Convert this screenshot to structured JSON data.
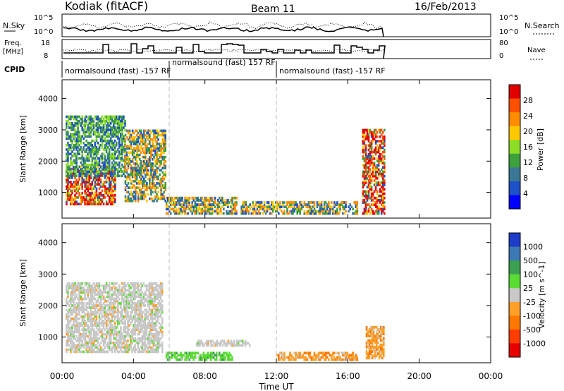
{
  "header": {
    "radar": "Kodiak (fitACF)",
    "beam": "Beam 11",
    "date": "16/Feb/2013"
  },
  "noise_panel": {
    "left_label": "N.Sky",
    "right_label": "N.Search",
    "left_ticks": [
      "10^5",
      "10^0"
    ],
    "right_ticks": [
      "10^5",
      "10^0"
    ]
  },
  "freq_panel": {
    "left_label_1": "Freq.",
    "left_label_2": "[MHz]",
    "right_label": "Nave",
    "left_ticks": [
      "18",
      "8"
    ],
    "right_ticks": [
      "80",
      "0"
    ]
  },
  "cpid": {
    "label": "CPID",
    "segments": [
      {
        "start_hour": 0.0,
        "end_hour": 6.0,
        "text": "normalsound (fast) -157 RF"
      },
      {
        "start_hour": 6.0,
        "end_hour": 12.0,
        "text": "normalsound (fast) 157 RF"
      },
      {
        "start_hour": 12.0,
        "end_hour": 18.0,
        "text": "normalsound (fast) -157 RF"
      }
    ]
  },
  "power_panel": {
    "ylabel": "Slant Range [km]",
    "colorbar_label": "Power [dB]",
    "colorbar_ticks": [
      "28",
      "24",
      "20",
      "16",
      "12",
      "8",
      "4"
    ],
    "colorbar_colors": [
      "#e00000",
      "#ff5000",
      "#ff8c00",
      "#ffc800",
      "#8cdc28",
      "#3ca03c",
      "#3c7896",
      "#1e50c8",
      "#0000ff"
    ]
  },
  "velocity_panel": {
    "ylabel": "Slant Range [km]",
    "colorbar_label": "Velocity [m s^-1]",
    "colorbar_ticks": [
      "1000",
      "500",
      "100",
      "25",
      "-25",
      "-100",
      "-500",
      "-1000"
    ],
    "colorbar_colors": [
      "#1e3cc8",
      "#3c78b4",
      "#3ca050",
      "#5adc32",
      "#c8c8c8",
      "#ffa028",
      "#ff7800",
      "#ff3c00",
      "#e60000"
    ]
  },
  "axes": {
    "x_ticks": [
      "00:00",
      "04:00",
      "08:00",
      "12:00",
      "16:00",
      "20:00",
      "00:00"
    ],
    "x_label": "Time UT",
    "y_ticks": [
      "1000",
      "2000",
      "3000",
      "4000"
    ]
  },
  "chart_data": {
    "type": "heatmap",
    "x_unit": "hours UT",
    "x_range": [
      0,
      24
    ],
    "y_range_km": [
      180,
      4600
    ],
    "data_end_hour": 18.0,
    "power_regions": [
      {
        "t0": 0.2,
        "t1": 3.0,
        "r0": 600,
        "r1": 1800,
        "level": "high"
      },
      {
        "t0": 0.2,
        "t1": 3.5,
        "r0": 1500,
        "r1": 3400,
        "level": "low"
      },
      {
        "t0": 3.5,
        "t1": 5.8,
        "r0": 700,
        "r1": 3000,
        "level": "medium"
      },
      {
        "t0": 5.8,
        "t1": 9.8,
        "r0": 300,
        "r1": 800,
        "level": "medium"
      },
      {
        "t0": 10.0,
        "t1": 16.5,
        "r0": 300,
        "r1": 700,
        "level": "medium"
      },
      {
        "t0": 16.8,
        "t1": 18.0,
        "r0": 300,
        "r1": 3000,
        "level": "high"
      }
    ],
    "velocity_regions": [
      {
        "t0": 0.2,
        "t1": 5.6,
        "r0": 500,
        "r1": 2700,
        "class": "near-zero"
      },
      {
        "t0": 5.8,
        "t1": 9.5,
        "r0": 250,
        "r1": 500,
        "class": "positive"
      },
      {
        "t0": 7.5,
        "t1": 10.5,
        "r0": 700,
        "r1": 900,
        "class": "near-zero"
      },
      {
        "t0": 12.0,
        "t1": 16.5,
        "r0": 250,
        "r1": 500,
        "class": "negative"
      },
      {
        "t0": 17.0,
        "t1": 18.0,
        "r0": 300,
        "r1": 1300,
        "class": "negative"
      }
    ]
  }
}
